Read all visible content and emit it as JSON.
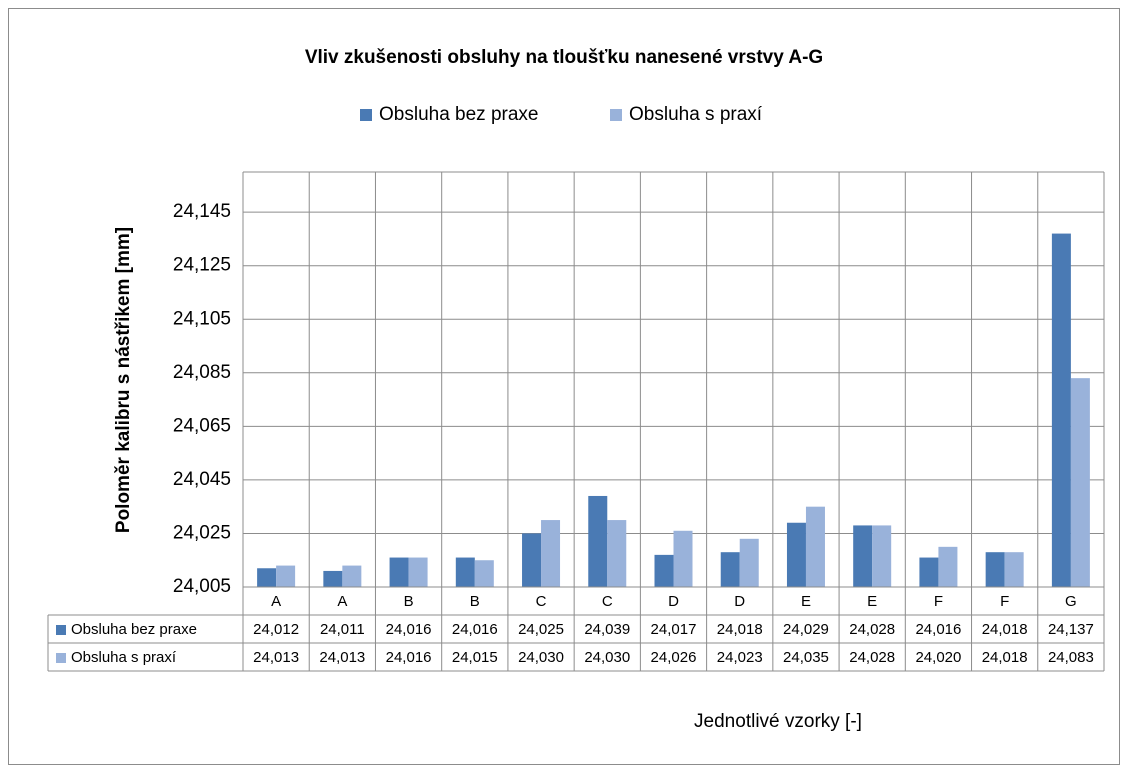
{
  "chart_data": {
    "type": "bar",
    "title": "Vliv zkušenosti obsluhy na tloušťku nanesené vrstvy A-G",
    "x_label": "Jednotlivé vzorky [-]",
    "y_label": "Poloměr kalibru s nástřikem [mm]",
    "categories": [
      "A",
      "A",
      "B",
      "B",
      "C",
      "C",
      "D",
      "D",
      "E",
      "E",
      "F",
      "F",
      "G"
    ],
    "series": [
      {
        "name": "Obsluha bez praxe",
        "color": "#4a7ab4",
        "values": [
          24.012,
          24.011,
          24.016,
          24.016,
          24.025,
          24.039,
          24.017,
          24.018,
          24.029,
          24.028,
          24.016,
          24.018,
          24.137
        ],
        "value_labels": [
          "24,012",
          "24,011",
          "24,016",
          "24,016",
          "24,025",
          "24,039",
          "24,017",
          "24,018",
          "24,029",
          "24,028",
          "24,016",
          "24,018",
          "24,137"
        ]
      },
      {
        "name": "Obsluha s praxí",
        "color": "#99b2da",
        "values": [
          24.013,
          24.013,
          24.016,
          24.015,
          24.03,
          24.03,
          24.026,
          24.023,
          24.035,
          24.028,
          24.02,
          24.018,
          24.083
        ],
        "value_labels": [
          "24,013",
          "24,013",
          "24,016",
          "24,015",
          "24,030",
          "24,030",
          "24,026",
          "24,023",
          "24,035",
          "24,028",
          "24,020",
          "24,018",
          "24,083"
        ]
      }
    ],
    "ylim": [
      24.005,
      24.16
    ],
    "yticks": [
      {
        "value": 24.005,
        "label": "24,005"
      },
      {
        "value": 24.025,
        "label": "24,025"
      },
      {
        "value": 24.045,
        "label": "24,045"
      },
      {
        "value": 24.065,
        "label": "24,065"
      },
      {
        "value": 24.085,
        "label": "24,085"
      },
      {
        "value": 24.105,
        "label": "24,105"
      },
      {
        "value": 24.125,
        "label": "24,125"
      },
      {
        "value": 24.145,
        "label": "24,145"
      }
    ],
    "grid": true,
    "legend": "top"
  }
}
